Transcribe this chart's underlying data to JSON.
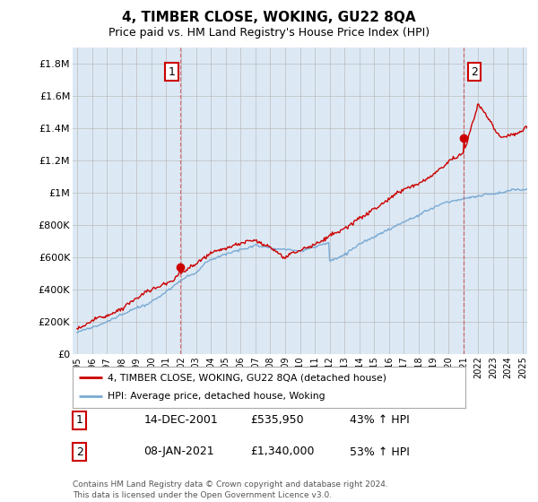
{
  "title": "4, TIMBER CLOSE, WOKING, GU22 8QA",
  "subtitle": "Price paid vs. HM Land Registry's House Price Index (HPI)",
  "title_fontsize": 11,
  "subtitle_fontsize": 9,
  "xlim": [
    1994.7,
    2025.3
  ],
  "ylim": [
    0,
    1900000
  ],
  "yticks": [
    0,
    200000,
    400000,
    600000,
    800000,
    1000000,
    1200000,
    1400000,
    1600000,
    1800000
  ],
  "ytick_labels": [
    "£0",
    "£200K",
    "£400K",
    "£600K",
    "£800K",
    "£1M",
    "£1.2M",
    "£1.4M",
    "£1.6M",
    "£1.8M"
  ],
  "xtick_years": [
    1995,
    1996,
    1997,
    1998,
    1999,
    2000,
    2001,
    2002,
    2003,
    2004,
    2005,
    2006,
    2007,
    2008,
    2009,
    2010,
    2011,
    2012,
    2013,
    2014,
    2015,
    2016,
    2017,
    2018,
    2019,
    2020,
    2021,
    2022,
    2023,
    2024,
    2025
  ],
  "sale1_x": 2001.95,
  "sale1_y": 535950,
  "sale1_label": "1",
  "sale1_date": "14-DEC-2001",
  "sale1_price": "£535,950",
  "sale1_hpi": "43% ↑ HPI",
  "sale2_x": 2021.04,
  "sale2_y": 1340000,
  "sale2_label": "2",
  "sale2_date": "08-JAN-2021",
  "sale2_price": "£1,340,000",
  "sale2_hpi": "53% ↑ HPI",
  "line_color_house": "#cc0000",
  "line_color_hpi": "#7aaad4",
  "vline_color": "#cc0000",
  "grid_color": "#bbbbbb",
  "plot_bg_color": "#dce9f5",
  "background_color": "#ffffff",
  "legend_label_house": "4, TIMBER CLOSE, WOKING, GU22 8QA (detached house)",
  "legend_label_hpi": "HPI: Average price, detached house, Woking",
  "footer": "Contains HM Land Registry data © Crown copyright and database right 2024.\nThis data is licensed under the Open Government Licence v3.0."
}
